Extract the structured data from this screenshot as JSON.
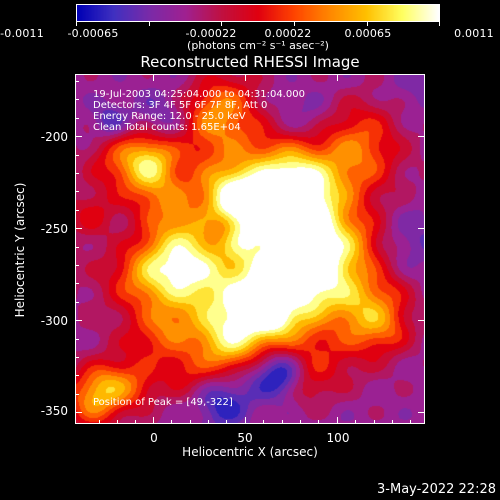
{
  "colorbar": {
    "ticks": [
      "-0.0011",
      "-0.00065",
      "-0.00022",
      "0.00022",
      "0.00065",
      "0.0011"
    ],
    "units": "(photons cm⁻² s⁻¹ asec⁻²)",
    "colormap": [
      "#0000b4",
      "#4030c0",
      "#7a2aa8",
      "#a02090",
      "#c01040",
      "#e00010",
      "#ff4400",
      "#ff8800",
      "#ffc000",
      "#ffff60",
      "#ffffff"
    ]
  },
  "plot": {
    "title": "Reconstructed RHESSI Image",
    "annotations": {
      "time_range": "19-Jul-2003 04:25:04.000 to 04:31:04.000",
      "detectors": "Detectors: 3F 4F 5F 6F 7F 8F, Att 0",
      "energy_range": "Energy Range: 12.0 - 25.0 keV",
      "algorithm": "Clean     Total counts: 1.65E+04",
      "peak": "Position of Peak = [49,-322]"
    },
    "x_axis": {
      "label": "Heliocentric X (arcsec)",
      "ticks": [
        "0",
        "50",
        "100"
      ],
      "range": [
        -42,
        148
      ]
    },
    "y_axis": {
      "label": "Heliocentric Y (arcsec)",
      "ticks": [
        "-200",
        "-250",
        "-300",
        "-350"
      ],
      "range": [
        -356,
        -166
      ]
    }
  },
  "footer": {
    "date": "3-May-2022 22:28"
  }
}
